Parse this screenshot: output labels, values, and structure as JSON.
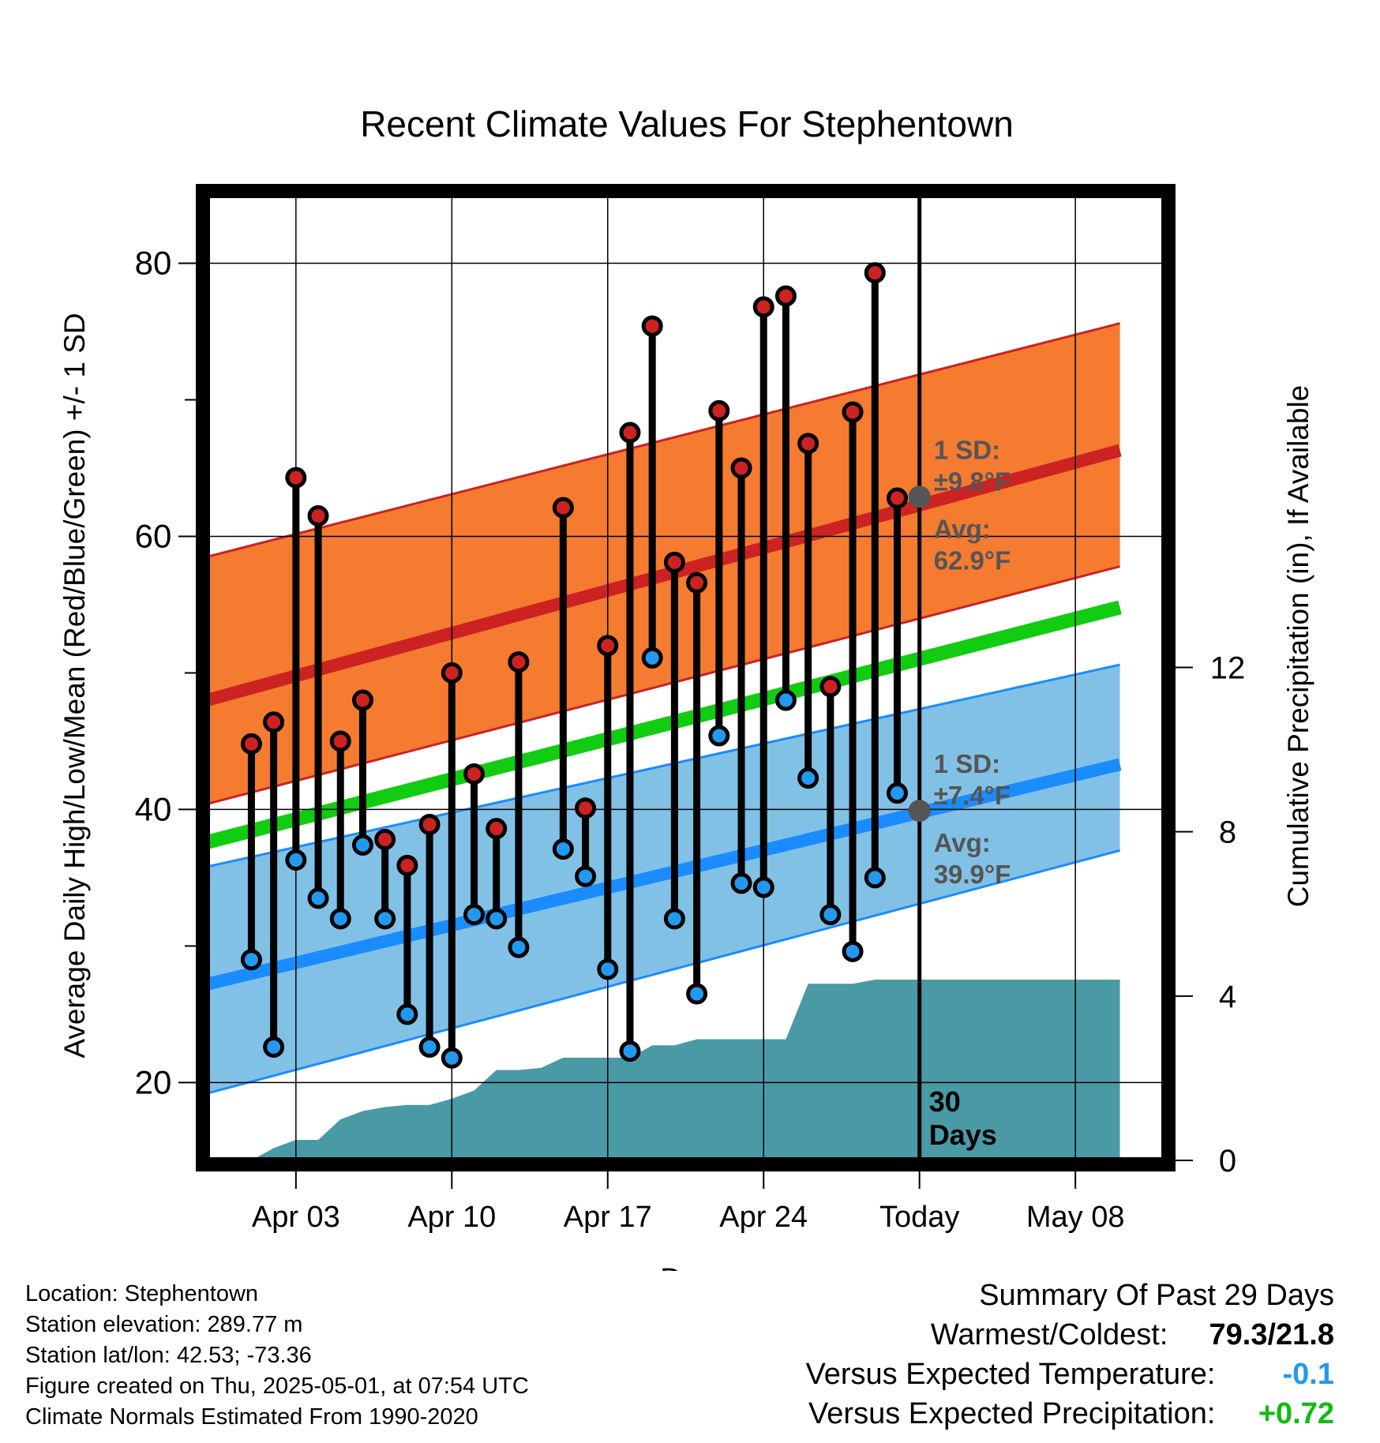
{
  "chart_data": {
    "type": "line",
    "title": "Recent Climate Values For Stephentown",
    "xlabel": "Day",
    "ylabel": "Average Daily High/Low/Mean (Red/Blue/Green) +/- 1 SD",
    "y2label": "Cumulative Precipitation (in), If Available",
    "x_range": [
      "2025-03-30",
      "2025-05-12"
    ],
    "ylim": [
      14.3,
      85
    ],
    "y2lim": [
      0,
      23.5
    ],
    "x_tick_labels": [
      {
        "date": "2025-04-03",
        "label": "Apr 03"
      },
      {
        "date": "2025-04-10",
        "label": "Apr 10"
      },
      {
        "date": "2025-04-17",
        "label": "Apr 17"
      },
      {
        "date": "2025-04-24",
        "label": "Apr 24"
      },
      {
        "date": "2025-05-01",
        "label": "Today"
      },
      {
        "date": "2025-05-08",
        "label": "May 08"
      }
    ],
    "y_ticks": [
      20,
      40,
      60,
      80
    ],
    "y_minor_ticks": [
      30,
      50,
      70
    ],
    "y2_ticks": [
      0,
      4,
      8,
      12
    ],
    "grid": true,
    "today_date": "2025-05-01",
    "today_label": [
      "30",
      "Days"
    ],
    "normals": {
      "dates": [
        "2025-03-30",
        "2025-05-10"
      ],
      "high_mean": [
        48.0,
        66.3
      ],
      "high_upper": [
        58.5,
        75.6
      ],
      "high_lower": [
        40.4,
        57.8
      ],
      "mean": [
        37.6,
        54.8
      ],
      "low_mean": [
        27.2,
        43.3
      ],
      "low_upper": [
        35.8,
        50.6
      ],
      "low_lower": [
        19.2,
        37.0
      ]
    },
    "high_sd_label": [
      "1 SD:",
      "±9.8°F"
    ],
    "high_avg_label": [
      "Avg:",
      "62.9°F"
    ],
    "high_avg_value": 62.9,
    "low_sd_label": [
      "1 SD:",
      "±7.4°F"
    ],
    "low_avg_label": [
      "Avg:",
      "39.9°F"
    ],
    "low_avg_value": 39.9,
    "series": [
      {
        "name": "High",
        "color": "#cc2222",
        "x": [
          "2025-04-01",
          "2025-04-02",
          "2025-04-03",
          "2025-04-04",
          "2025-04-05",
          "2025-04-06",
          "2025-04-07",
          "2025-04-08",
          "2025-04-09",
          "2025-04-10",
          "2025-04-11",
          "2025-04-12",
          "2025-04-13",
          "2025-04-15",
          "2025-04-16",
          "2025-04-17",
          "2025-04-18",
          "2025-04-19",
          "2025-04-20",
          "2025-04-21",
          "2025-04-22",
          "2025-04-23",
          "2025-04-24",
          "2025-04-25",
          "2025-04-26",
          "2025-04-27",
          "2025-04-28",
          "2025-04-29",
          "2025-04-30"
        ],
        "values": [
          44.8,
          46.4,
          64.3,
          61.5,
          45.0,
          48.0,
          37.8,
          35.9,
          38.9,
          50.0,
          42.6,
          38.6,
          50.8,
          62.1,
          40.1,
          52.0,
          67.6,
          75.4,
          58.1,
          56.6,
          69.2,
          65.0,
          76.8,
          77.6,
          66.8,
          49.0,
          69.1,
          79.3,
          62.8
        ]
      },
      {
        "name": "Low",
        "color": "#2288ee",
        "x": [
          "2025-04-01",
          "2025-04-02",
          "2025-04-03",
          "2025-04-04",
          "2025-04-05",
          "2025-04-06",
          "2025-04-07",
          "2025-04-08",
          "2025-04-09",
          "2025-04-10",
          "2025-04-11",
          "2025-04-12",
          "2025-04-13",
          "2025-04-15",
          "2025-04-16",
          "2025-04-17",
          "2025-04-18",
          "2025-04-19",
          "2025-04-20",
          "2025-04-21",
          "2025-04-22",
          "2025-04-23",
          "2025-04-24",
          "2025-04-25",
          "2025-04-26",
          "2025-04-27",
          "2025-04-28",
          "2025-04-29",
          "2025-04-30"
        ],
        "values": [
          29.0,
          22.6,
          36.3,
          33.5,
          32.0,
          37.4,
          32.0,
          25.0,
          22.6,
          21.8,
          32.3,
          32.0,
          29.9,
          37.1,
          35.1,
          28.3,
          22.3,
          51.1,
          32.0,
          26.5,
          45.4,
          34.6,
          34.3,
          48.0,
          42.3,
          32.3,
          29.6,
          35.0,
          41.2
        ]
      },
      {
        "name": "Cumulative Precipitation",
        "x": [
          "2025-04-01",
          "2025-04-02",
          "2025-04-03",
          "2025-04-04",
          "2025-04-05",
          "2025-04-06",
          "2025-04-07",
          "2025-04-08",
          "2025-04-09",
          "2025-04-10",
          "2025-04-11",
          "2025-04-12",
          "2025-04-13",
          "2025-04-14",
          "2025-04-15",
          "2025-04-16",
          "2025-04-17",
          "2025-04-18",
          "2025-04-19",
          "2025-04-20",
          "2025-04-21",
          "2025-04-22",
          "2025-04-23",
          "2025-04-24",
          "2025-04-25",
          "2025-04-26",
          "2025-04-27",
          "2025-04-28",
          "2025-04-29",
          "2025-04-30",
          "2025-05-01",
          "2025-05-10"
        ],
        "values": [
          0.0,
          0.3,
          0.5,
          0.5,
          1.0,
          1.2,
          1.3,
          1.35,
          1.35,
          1.5,
          1.7,
          2.2,
          2.2,
          2.25,
          2.5,
          2.5,
          2.5,
          2.5,
          2.8,
          2.8,
          2.95,
          2.95,
          2.95,
          2.95,
          2.95,
          4.3,
          4.3,
          4.3,
          4.4,
          4.4,
          4.4,
          4.4
        ]
      }
    ],
    "colors": {
      "high_band": "#f47b30",
      "high_line": "#cc2222",
      "low_band": "#82c1e6",
      "low_line": "#1a8cff",
      "mean_line": "#11cc11",
      "precip": "#4a9aa5",
      "high_dot": "#cc2222",
      "low_dot": "#2299ee",
      "label_gray": "#555555"
    }
  },
  "footer": {
    "location": "Location: Stephentown",
    "elevation": "Station elevation: 289.77 m",
    "latlon": "Station lat/lon: 42.53; -73.36",
    "created": "Figure created on Thu, 2025-05-01, at 07:54 UTC",
    "normals": "Climate Normals Estimated From 1990-2020"
  },
  "summary": {
    "title": "Summary Of Past 29 Days",
    "warmest_label": "Warmest/Coldest:",
    "warmest_value": "79.3/21.8",
    "temp_label": "Versus Expected Temperature:",
    "temp_value": "-0.1",
    "temp_color": "#2299ee",
    "precip_label": "Versus Expected Precipitation:",
    "precip_value": "+0.72",
    "precip_color": "#11bb11"
  }
}
